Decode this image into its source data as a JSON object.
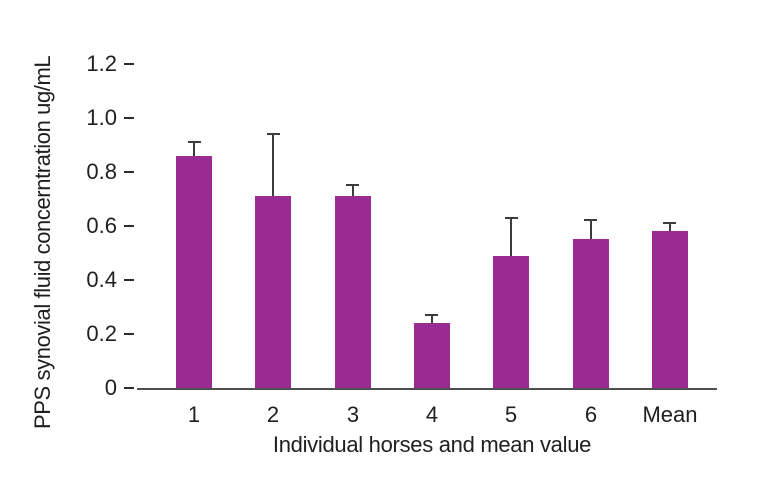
{
  "chart_data": {
    "type": "bar",
    "title": "",
    "xlabel": "Individual horses and mean value",
    "ylabel": "PPS synovial fluid concerntration ug/mL",
    "categories": [
      "1",
      "2",
      "3",
      "4",
      "5",
      "6",
      "Mean"
    ],
    "values": [
      0.86,
      0.71,
      0.71,
      0.24,
      0.49,
      0.55,
      0.58
    ],
    "errors_plus": [
      0.05,
      0.23,
      0.04,
      0.03,
      0.14,
      0.07,
      0.03
    ],
    "ylim": [
      0,
      1.2
    ],
    "yticks": [
      0,
      0.2,
      0.4,
      0.6,
      0.8,
      1.0,
      1.2
    ],
    "ytick_labels": [
      "0",
      "0.2",
      "0.4",
      "0.6",
      "0.8",
      "1.0",
      "1.2"
    ],
    "grid": "off",
    "legend": "none",
    "colors": {
      "bar_fill": "#992b93",
      "error_bar": "#3c3c3c",
      "axis_line": "#4f4f4f",
      "text": "#1f1f1f",
      "background": "#ffffff"
    }
  }
}
